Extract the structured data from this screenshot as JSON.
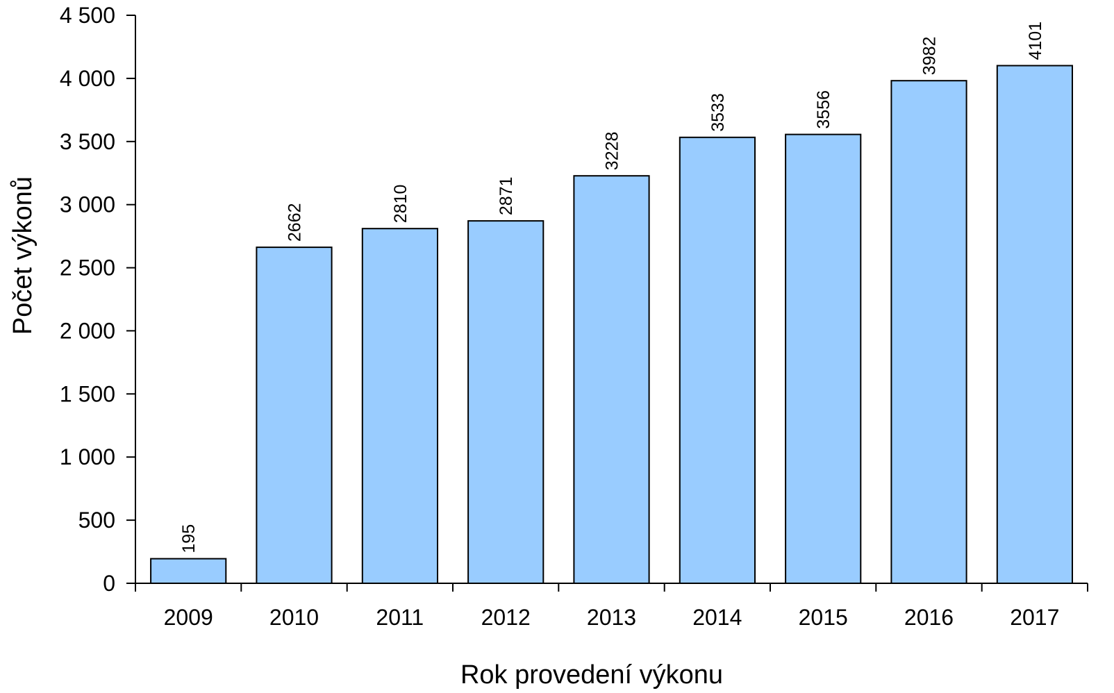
{
  "chart_data": {
    "type": "bar",
    "categories": [
      "2009",
      "2010",
      "2011",
      "2012",
      "2013",
      "2014",
      "2015",
      "2016",
      "2017"
    ],
    "values": [
      195,
      2662,
      2810,
      2871,
      3228,
      3533,
      3556,
      3982,
      4101
    ],
    "data_labels": [
      "195",
      "2662",
      "2810",
      "2871",
      "3228",
      "3533",
      "3556",
      "3982",
      "4101"
    ],
    "xlabel": "Rok provedení výkonu",
    "ylabel": "Počet výkonů",
    "ylim": [
      0,
      4500
    ],
    "yticks": [
      0,
      500,
      1000,
      1500,
      2000,
      2500,
      3000,
      3500,
      4000,
      4500
    ],
    "ytick_labels": [
      "0",
      "500",
      "1 000",
      "1 500",
      "2 000",
      "2 500",
      "3 000",
      "3 500",
      "4 000",
      "4 500"
    ],
    "grid": false,
    "legend": "none",
    "colors": {
      "bar_fill": "#99ccff",
      "bar_stroke": "#000000",
      "axis": "#000000"
    }
  }
}
